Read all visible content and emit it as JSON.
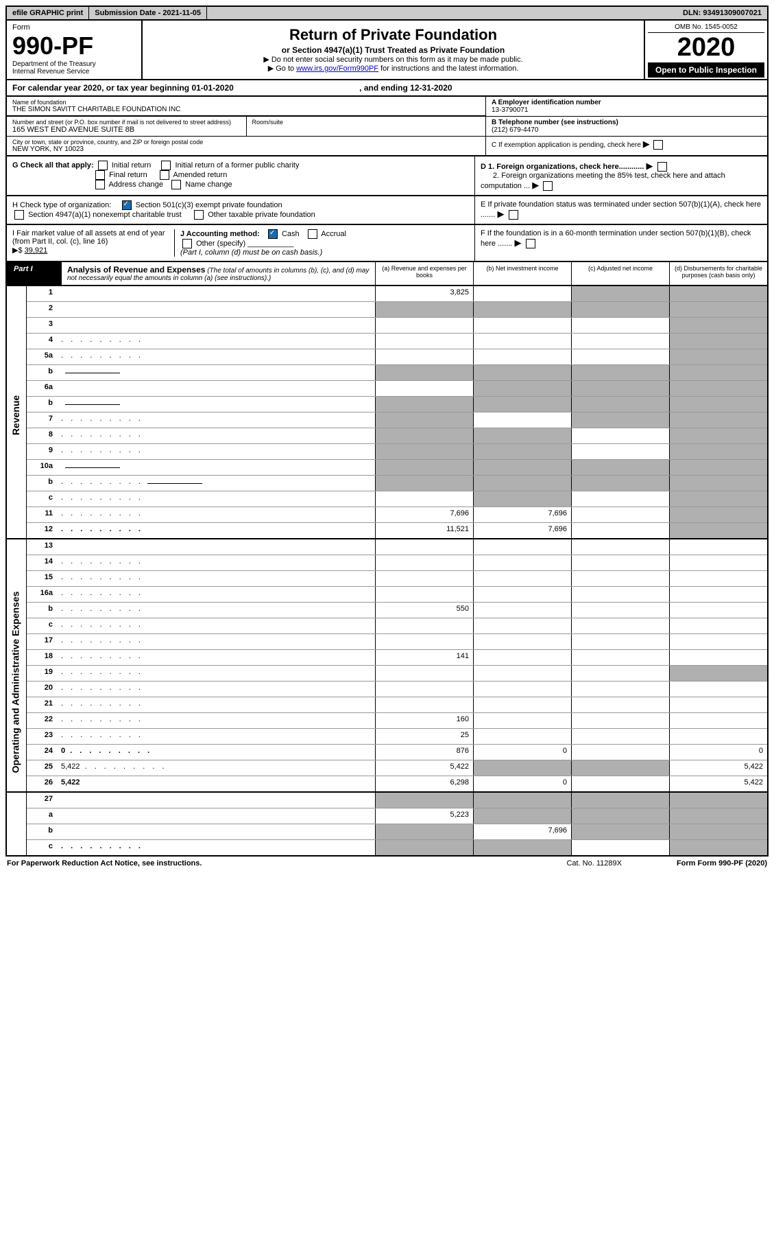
{
  "top_bar": {
    "efile": "efile GRAPHIC print",
    "submission": "Submission Date - 2021-11-05",
    "dln": "DLN: 93491309007021"
  },
  "header": {
    "form_label": "Form",
    "form_number": "990-PF",
    "dept": "Department of the Treasury",
    "irs": "Internal Revenue Service",
    "title": "Return of Private Foundation",
    "subtitle": "or Section 4947(a)(1) Trust Treated as Private Foundation",
    "instr1": "▶ Do not enter social security numbers on this form as it may be made public.",
    "instr2_pre": "▶ Go to ",
    "instr2_link": "www.irs.gov/Form990PF",
    "instr2_post": " for instructions and the latest information.",
    "omb": "OMB No. 1545-0052",
    "year": "2020",
    "open": "Open to Public Inspection"
  },
  "cal_year": {
    "text_a": "For calendar year 2020, or tax year beginning 01-01-2020",
    "text_b": ", and ending 12-31-2020"
  },
  "id": {
    "name_label": "Name of foundation",
    "name": "THE SIMON SAVITT CHARITABLE FOUNDATION INC",
    "addr_label": "Number and street (or P.O. box number if mail is not delivered to street address)",
    "addr": "165 WEST END AVENUE SUITE 8B",
    "room_label": "Room/suite",
    "city_label": "City or town, state or province, country, and ZIP or foreign postal code",
    "city": "NEW YORK, NY  10023",
    "a_label": "A Employer identification number",
    "a_val": "13-3790071",
    "b_label": "B Telephone number (see instructions)",
    "b_val": "(212) 679-4470",
    "c_label": "C If exemption application is pending, check here"
  },
  "checks": {
    "g_label": "G Check all that apply:",
    "g_items": [
      "Initial return",
      "Initial return of a former public charity",
      "Final return",
      "Amended return",
      "Address change",
      "Name change"
    ],
    "h_label": "H Check type of organization:",
    "h_501c3": "Section 501(c)(3) exempt private foundation",
    "h_4947": "Section 4947(a)(1) nonexempt charitable trust",
    "h_other": "Other taxable private foundation",
    "i_label": "I Fair market value of all assets at end of year (from Part II, col. (c), line 16)",
    "i_val": "39,921",
    "j_label": "J Accounting method:",
    "j_cash": "Cash",
    "j_accrual": "Accrual",
    "j_other": "Other (specify)",
    "j_note": "(Part I, column (d) must be on cash basis.)",
    "d1": "D 1. Foreign organizations, check here............",
    "d2": "2. Foreign organizations meeting the 85% test, check here and attach computation ...",
    "e": "E  If private foundation status was terminated under section 507(b)(1)(A), check here .......",
    "f": "F  If the foundation is in a 60-month termination under section 507(b)(1)(B), check here .......",
    "arrow": "▶",
    "dollar": "▶$"
  },
  "part1": {
    "label": "Part I",
    "title": "Analysis of Revenue and Expenses",
    "title_note": "(The total of amounts in columns (b), (c), and (d) may not necessarily equal the amounts in column (a) (see instructions).)",
    "col_a": "(a)  Revenue and expenses per books",
    "col_b": "(b)  Net investment income",
    "col_c": "(c)  Adjusted net income",
    "col_d": "(d)  Disbursements for charitable purposes (cash basis only)"
  },
  "side_labels": {
    "revenue": "Revenue",
    "opex": "Operating and Administrative Expenses"
  },
  "rows": [
    {
      "n": "1",
      "d": "",
      "a": "3,825",
      "b": "",
      "c": "",
      "shade": [
        "c",
        "d"
      ]
    },
    {
      "n": "2",
      "d": "",
      "a": "",
      "b": "",
      "c": "",
      "shade": [
        "a",
        "b",
        "c",
        "d"
      ],
      "nocells": true
    },
    {
      "n": "3",
      "d": "",
      "a": "",
      "b": "",
      "c": "",
      "shade": [
        "d"
      ]
    },
    {
      "n": "4",
      "d": "",
      "a": "",
      "b": "",
      "c": "",
      "shade": [
        "d"
      ],
      "dots": true
    },
    {
      "n": "5a",
      "d": "",
      "a": "",
      "b": "",
      "c": "",
      "shade": [
        "d"
      ],
      "dots": true
    },
    {
      "n": "b",
      "d": "",
      "a": "",
      "b": "",
      "c": "",
      "shade": [
        "a",
        "b",
        "c",
        "d"
      ],
      "inline": true
    },
    {
      "n": "6a",
      "d": "",
      "a": "",
      "b": "",
      "c": "",
      "shade": [
        "b",
        "c",
        "d"
      ]
    },
    {
      "n": "b",
      "d": "",
      "a": "",
      "b": "",
      "c": "",
      "shade": [
        "a",
        "b",
        "c",
        "d"
      ],
      "inline": true
    },
    {
      "n": "7",
      "d": "",
      "a": "",
      "b": "",
      "c": "",
      "shade": [
        "a",
        "c",
        "d"
      ],
      "dots": true
    },
    {
      "n": "8",
      "d": "",
      "a": "",
      "b": "",
      "c": "",
      "shade": [
        "a",
        "b",
        "d"
      ],
      "dots": true
    },
    {
      "n": "9",
      "d": "",
      "a": "",
      "b": "",
      "c": "",
      "shade": [
        "a",
        "b",
        "d"
      ],
      "dots": true
    },
    {
      "n": "10a",
      "d": "",
      "a": "",
      "b": "",
      "c": "",
      "shade": [
        "a",
        "b",
        "c",
        "d"
      ],
      "inline": true
    },
    {
      "n": "b",
      "d": "",
      "a": "",
      "b": "",
      "c": "",
      "shade": [
        "a",
        "b",
        "c",
        "d"
      ],
      "inline": true,
      "dots": true
    },
    {
      "n": "c",
      "d": "",
      "a": "",
      "b": "",
      "c": "",
      "shade": [
        "b",
        "d"
      ],
      "dots": true
    },
    {
      "n": "11",
      "d": "",
      "a": "7,696",
      "b": "7,696",
      "c": "",
      "shade": [
        "d"
      ],
      "dots": true
    },
    {
      "n": "12",
      "d": "",
      "a": "11,521",
      "b": "7,696",
      "c": "",
      "shade": [
        "d"
      ],
      "dots": true,
      "bold": true
    }
  ],
  "rows2": [
    {
      "n": "13",
      "d": "",
      "a": "",
      "b": "",
      "c": ""
    },
    {
      "n": "14",
      "d": "",
      "a": "",
      "b": "",
      "c": "",
      "dots": true
    },
    {
      "n": "15",
      "d": "",
      "a": "",
      "b": "",
      "c": "",
      "dots": true
    },
    {
      "n": "16a",
      "d": "",
      "a": "",
      "b": "",
      "c": "",
      "dots": true
    },
    {
      "n": "b",
      "d": "",
      "a": "550",
      "b": "",
      "c": "",
      "dots": true
    },
    {
      "n": "c",
      "d": "",
      "a": "",
      "b": "",
      "c": "",
      "dots": true
    },
    {
      "n": "17",
      "d": "",
      "a": "",
      "b": "",
      "c": "",
      "dots": true
    },
    {
      "n": "18",
      "d": "",
      "a": "141",
      "b": "",
      "c": "",
      "dots": true
    },
    {
      "n": "19",
      "d": "",
      "a": "",
      "b": "",
      "c": "",
      "shade": [
        "d"
      ],
      "dots": true
    },
    {
      "n": "20",
      "d": "",
      "a": "",
      "b": "",
      "c": "",
      "dots": true
    },
    {
      "n": "21",
      "d": "",
      "a": "",
      "b": "",
      "c": "",
      "dots": true
    },
    {
      "n": "22",
      "d": "",
      "a": "160",
      "b": "",
      "c": "",
      "dots": true
    },
    {
      "n": "23",
      "d": "",
      "a": "25",
      "b": "",
      "c": "",
      "dots": true
    },
    {
      "n": "24",
      "d": "0",
      "a": "876",
      "b": "0",
      "c": "",
      "dots": true,
      "bold": true
    },
    {
      "n": "25",
      "d": "5,422",
      "a": "5,422",
      "b": "",
      "c": "",
      "shade": [
        "b",
        "c"
      ],
      "dots": true
    },
    {
      "n": "26",
      "d": "5,422",
      "a": "6,298",
      "b": "0",
      "c": "",
      "bold": true
    }
  ],
  "rows3": [
    {
      "n": "27",
      "d": "",
      "a": "",
      "b": "",
      "c": "",
      "shade": [
        "a",
        "b",
        "c",
        "d"
      ]
    },
    {
      "n": "a",
      "d": "",
      "a": "5,223",
      "b": "",
      "c": "",
      "shade": [
        "b",
        "c",
        "d"
      ],
      "bold": true
    },
    {
      "n": "b",
      "d": "",
      "a": "",
      "b": "7,696",
      "c": "",
      "shade": [
        "a",
        "c",
        "d"
      ],
      "bold": true
    },
    {
      "n": "c",
      "d": "",
      "a": "",
      "b": "",
      "c": "",
      "shade": [
        "a",
        "b",
        "d"
      ],
      "bold": true,
      "dots": true
    }
  ],
  "footer": {
    "left": "For Paperwork Reduction Act Notice, see instructions.",
    "cat": "Cat. No. 11289X",
    "form": "Form 990-PF (2020)"
  }
}
